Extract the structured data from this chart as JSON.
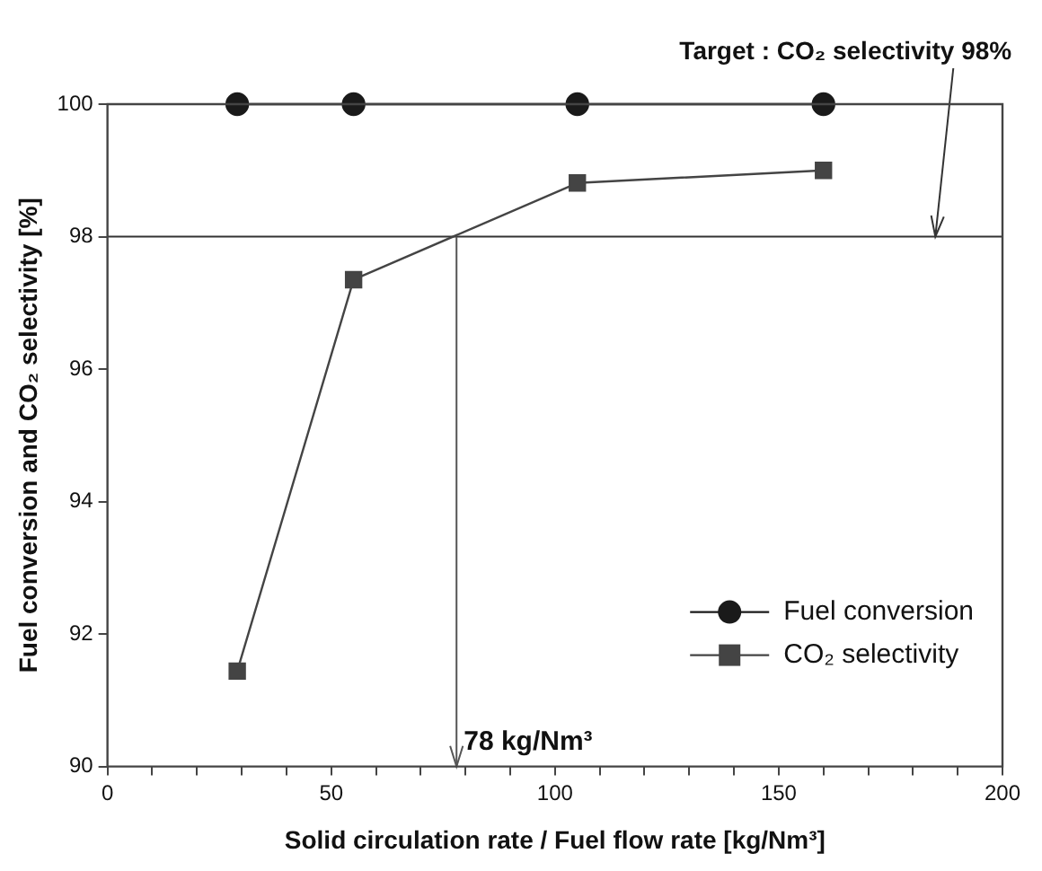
{
  "chart_data": {
    "type": "line",
    "xlabel": "Solid circulation rate / Fuel flow rate [kg/Nm³]",
    "ylabel": "Fuel conversion and CO₂ selectivity [%]",
    "x": [
      29,
      55,
      105,
      160
    ],
    "series": [
      {
        "name": "Fuel conversion",
        "color": "#1a1a1a",
        "values": [
          100,
          100,
          100,
          100
        ],
        "marker": "circle"
      },
      {
        "name": "CO₂ selectivity",
        "color": "#444444",
        "values": [
          91.44,
          97.35,
          98.81,
          99.0
        ],
        "marker": "square"
      }
    ],
    "xlim": [
      0,
      200
    ],
    "xticks": [
      0,
      {
        "value": 10,
        "label": null
      },
      {
        "value": 20,
        "label": null
      },
      {
        "value": 30,
        "label": null
      },
      {
        "value": 40,
        "label": null
      },
      50,
      {
        "value": 60,
        "label": null
      },
      {
        "value": 70,
        "label": null
      },
      {
        "value": 80,
        "label": null
      },
      {
        "value": 90,
        "label": null
      },
      100,
      {
        "value": 110,
        "label": null
      },
      {
        "value": 120,
        "label": null
      },
      {
        "value": 130,
        "label": null
      },
      {
        "value": 140,
        "label": null
      },
      150,
      {
        "value": 160,
        "label": null
      },
      {
        "value": 170,
        "label": null
      },
      {
        "value": 180,
        "label": null
      },
      {
        "value": 190,
        "label": null
      },
      200
    ],
    "ylim": [
      90,
      100
    ],
    "yticks": [
      90,
      92,
      94,
      96,
      98,
      100
    ],
    "ref_lines": [
      {
        "axis": "y",
        "value": 98,
        "color": "#333333"
      },
      {
        "axis": "x",
        "value": 78,
        "label": "78 kg/Nm³",
        "color": "#555555"
      }
    ],
    "annotations": [
      {
        "text": "Target : CO₂ selectivity 98%",
        "x": 185,
        "y": 98
      }
    ],
    "grid": false,
    "legend": "bottom right",
    "line_style": "solid"
  }
}
